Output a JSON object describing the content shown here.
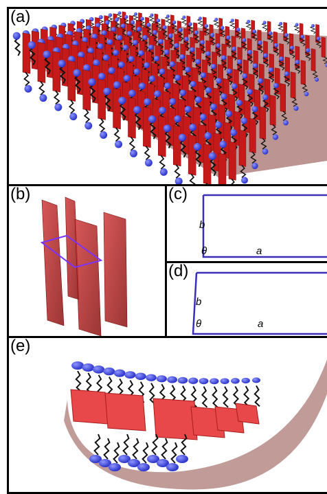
{
  "panels": {
    "a": {
      "label": "(a)"
    },
    "b": {
      "label": "(b)"
    },
    "c": {
      "label": "(c)",
      "side_b": "b",
      "side_a": "a",
      "angle": "θ"
    },
    "d": {
      "label": "(d)",
      "side_b": "b",
      "side_a": "a",
      "angle": "θ"
    },
    "e": {
      "label": "(e)"
    }
  },
  "colors": {
    "membrane": "#a5706c",
    "sheet": "#c41a1a",
    "sheet_light": "#e8484a",
    "lipid_head": "#2a33c9",
    "lipid_tail": "#111111",
    "cell_outline": "#3b2fb8"
  }
}
